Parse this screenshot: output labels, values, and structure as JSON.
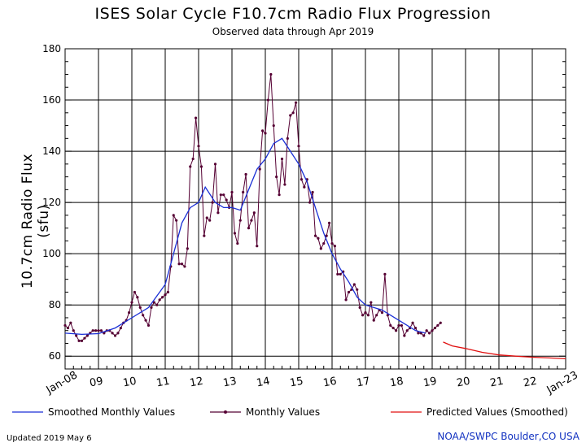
{
  "chart_data": {
    "type": "line",
    "title": "ISES Solar Cycle F10.7cm Radio Flux Progression",
    "subtitle": "Observed data through Apr 2019",
    "ylabel": "10.7cm Radio Flux (sfu)",
    "xlabel": "",
    "ylim": [
      55,
      180
    ],
    "xlim": [
      2008.0,
      2023.0
    ],
    "yticks": [
      60,
      80,
      100,
      120,
      140,
      160,
      180
    ],
    "xticks": [
      {
        "x": 2008,
        "label": "Jan-08"
      },
      {
        "x": 2009,
        "label": "09"
      },
      {
        "x": 2010,
        "label": "10"
      },
      {
        "x": 2011,
        "label": "11"
      },
      {
        "x": 2012,
        "label": "12"
      },
      {
        "x": 2013,
        "label": "13"
      },
      {
        "x": 2014,
        "label": "14"
      },
      {
        "x": 2015,
        "label": "15"
      },
      {
        "x": 2016,
        "label": "16"
      },
      {
        "x": 2017,
        "label": "17"
      },
      {
        "x": 2018,
        "label": "18"
      },
      {
        "x": 2019,
        "label": "19"
      },
      {
        "x": 2020,
        "label": "20"
      },
      {
        "x": 2021,
        "label": "21"
      },
      {
        "x": 2022,
        "label": "22"
      },
      {
        "x": 2023,
        "label": "Jan-23"
      }
    ],
    "grid": true,
    "colors": {
      "smoothed": "#1a2fd6",
      "monthly": "#550033",
      "predicted": "#e01010",
      "axis": "#000000",
      "grid": "#000000"
    },
    "series": [
      {
        "name": "Monthly Values",
        "style": "line-markers",
        "x_start": 2008.0,
        "x_step": 0.0833333,
        "values": [
          72,
          71,
          73,
          70,
          68,
          66,
          66,
          67,
          68,
          69,
          70,
          70,
          70,
          70,
          69,
          70,
          70,
          69,
          68,
          69,
          71,
          73,
          74,
          77,
          81,
          85,
          83,
          79,
          76,
          74,
          72,
          79,
          81,
          80,
          82,
          83,
          84,
          85,
          95,
          115,
          113,
          96,
          96,
          95,
          102,
          134,
          137,
          153,
          142,
          134,
          107,
          114,
          113,
          120,
          135,
          116,
          123,
          123,
          121,
          118,
          124,
          108,
          104,
          113,
          124,
          131,
          110,
          113,
          116,
          103,
          133,
          148,
          147,
          160,
          170,
          150,
          130,
          123,
          137,
          127,
          145,
          154,
          155,
          159,
          142,
          129,
          126,
          129,
          120,
          124,
          107,
          106,
          102,
          104,
          107,
          112,
          104,
          103,
          92,
          92,
          93,
          82,
          85,
          86,
          88,
          86,
          79,
          76,
          77,
          76,
          81,
          74,
          76,
          78,
          77,
          92,
          76,
          72,
          71,
          70,
          72,
          72,
          68,
          70,
          71,
          73,
          71,
          69,
          69,
          68,
          70,
          69,
          70,
          71,
          72,
          73
        ]
      },
      {
        "name": "Smoothed Monthly Values",
        "style": "line",
        "points": [
          [
            2008.0,
            69
          ],
          [
            2008.5,
            68.5
          ],
          [
            2009.0,
            68.8
          ],
          [
            2009.5,
            71
          ],
          [
            2010.0,
            75
          ],
          [
            2010.5,
            79
          ],
          [
            2011.0,
            88
          ],
          [
            2011.5,
            112
          ],
          [
            2011.75,
            118
          ],
          [
            2012.0,
            120
          ],
          [
            2012.2,
            126
          ],
          [
            2012.5,
            120
          ],
          [
            2012.75,
            118
          ],
          [
            2013.0,
            118
          ],
          [
            2013.25,
            117
          ],
          [
            2013.5,
            125
          ],
          [
            2013.75,
            133
          ],
          [
            2014.0,
            137
          ],
          [
            2014.25,
            143
          ],
          [
            2014.5,
            145
          ],
          [
            2014.75,
            140
          ],
          [
            2015.0,
            135
          ],
          [
            2015.25,
            128
          ],
          [
            2015.5,
            118
          ],
          [
            2015.75,
            108
          ],
          [
            2016.0,
            100
          ],
          [
            2016.25,
            94
          ],
          [
            2016.5,
            89
          ],
          [
            2016.75,
            83
          ],
          [
            2017.0,
            80
          ],
          [
            2017.5,
            78
          ],
          [
            2018.0,
            74
          ],
          [
            2018.5,
            70
          ],
          [
            2018.8,
            69
          ]
        ]
      },
      {
        "name": "Predicted Values (Smoothed)",
        "style": "line",
        "points": [
          [
            2019.33,
            65.5
          ],
          [
            2019.6,
            64
          ],
          [
            2020.0,
            63
          ],
          [
            2020.5,
            61.5
          ],
          [
            2021.0,
            60.5
          ],
          [
            2021.5,
            60
          ],
          [
            2022.0,
            59.6
          ],
          [
            2022.5,
            59.3
          ],
          [
            2023.0,
            59
          ]
        ]
      }
    ],
    "legend": {
      "placement": "bottom",
      "items": [
        {
          "label": "Smoothed Monthly Values",
          "series": "smoothed"
        },
        {
          "label": "Monthly Values",
          "series": "monthly"
        },
        {
          "label": "Predicted Values (Smoothed)",
          "series": "predicted"
        }
      ]
    }
  },
  "footer": {
    "updated": "Updated 2019 May  6",
    "source": "NOAA/SWPC Boulder,CO USA"
  }
}
